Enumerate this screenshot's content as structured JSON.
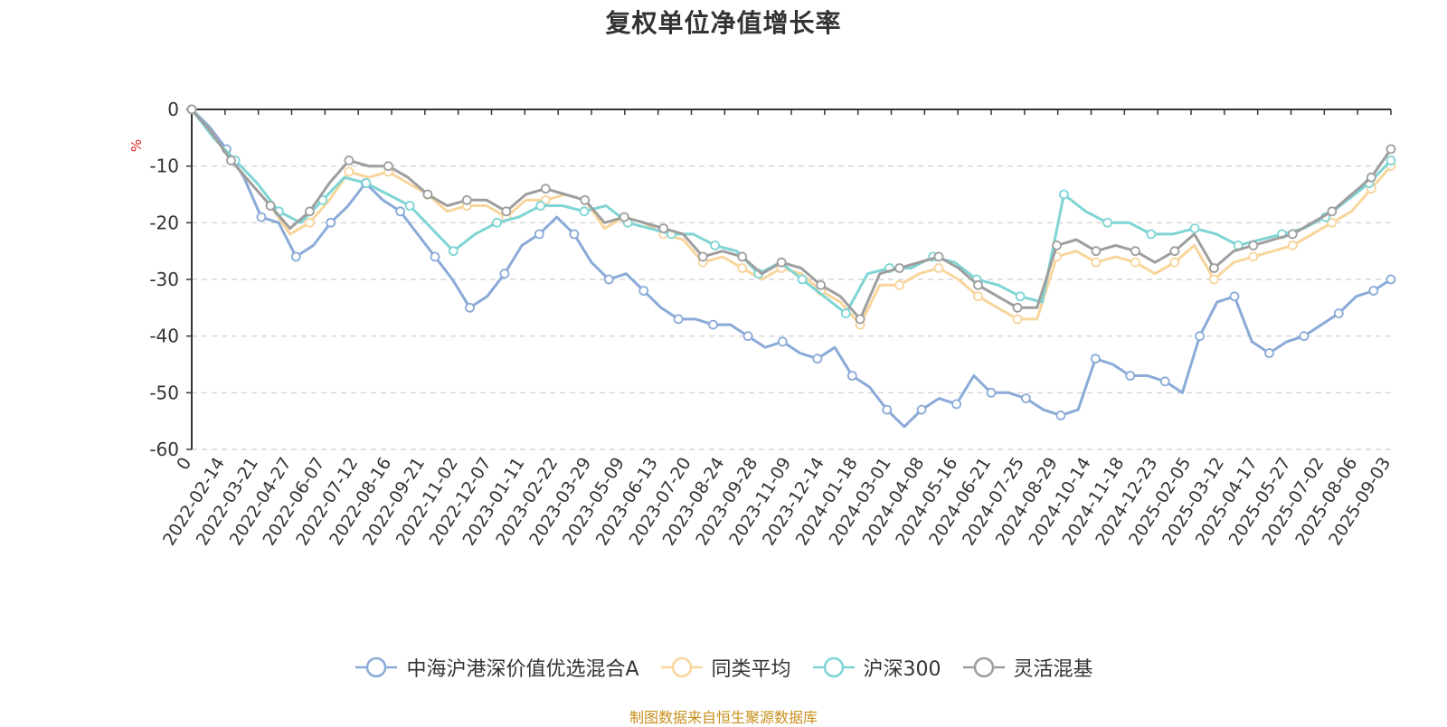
{
  "chart_data": {
    "type": "line",
    "title": "复权单位净值增长率",
    "ylabel": "%",
    "ylim": [
      -60,
      0
    ],
    "yticks": [
      "0",
      "-10",
      "-20",
      "-30",
      "-40",
      "-50",
      "-60"
    ],
    "ytick_values": [
      0,
      -10,
      -20,
      -30,
      -40,
      -50,
      -60
    ],
    "grid": true,
    "legend_position": "bottom",
    "xtick_labels": [
      "0",
      "2022-02-14",
      "2022-03-21",
      "2022-04-27",
      "2022-06-07",
      "2022-07-12",
      "2022-08-16",
      "2022-09-21",
      "2022-11-02",
      "2022-12-07",
      "2023-01-11",
      "2023-02-22",
      "2023-03-29",
      "2023-05-09",
      "2023-06-13",
      "2023-07-20",
      "2023-08-24",
      "2023-09-28",
      "2023-11-09",
      "2023-12-14",
      "2024-01-18",
      "2024-03-01",
      "2024-04-08",
      "2024-05-16",
      "2024-06-21",
      "2024-07-25",
      "2024-08-29",
      "2024-10-14",
      "2024-11-18",
      "2024-12-23",
      "2025-02-05",
      "2025-03-12",
      "2025-04-17",
      "2025-05-27",
      "2025-07-02",
      "2025-08-06",
      "2025-09-03"
    ],
    "series": [
      {
        "name": "中海沪港深价值优选混合A",
        "color": "#8aaad8",
        "values": [
          0,
          -3,
          -7,
          -12,
          -19,
          -20,
          -26,
          -24,
          -20,
          -17,
          -13,
          -16,
          -18,
          -22,
          -26,
          -30,
          -35,
          -33,
          -29,
          -24,
          -22,
          -19,
          -22,
          -27,
          -30,
          -29,
          -32,
          -35,
          -37,
          -37,
          -38,
          -38,
          -40,
          -42,
          -41,
          -43,
          -44,
          -42,
          -47,
          -49,
          -53,
          -56,
          -53,
          -51,
          -52,
          -47,
          -50,
          -50,
          -51,
          -53,
          -54,
          -53,
          -44,
          -45,
          -47,
          -47,
          -48,
          -50,
          -40,
          -34,
          -33,
          -41,
          -43,
          -41,
          -40,
          -38,
          -36,
          -33,
          -32,
          -30
        ]
      },
      {
        "name": "同类平均",
        "color": "#f8d59b",
        "values": [
          0,
          -4,
          -9,
          -13,
          -17,
          -22,
          -20,
          -16,
          -11,
          -12,
          -11,
          -13,
          -15,
          -18,
          -17,
          -17,
          -19,
          -16,
          -16,
          -15,
          -16,
          -21,
          -19,
          -20,
          -22,
          -23,
          -27,
          -26,
          -28,
          -30,
          -28,
          -29,
          -32,
          -34,
          -38,
          -31,
          -31,
          -29,
          -28,
          -30,
          -33,
          -35,
          -37,
          -37,
          -26,
          -25,
          -27,
          -26,
          -27,
          -29,
          -27,
          -24,
          -30,
          -27,
          -26,
          -25,
          -24,
          -22,
          -20,
          -18,
          -14,
          -10
        ]
      },
      {
        "name": "沪深300",
        "color": "#7fd4d4",
        "values": [
          0,
          -5,
          -9,
          -13,
          -18,
          -20,
          -16,
          -12,
          -13,
          -15,
          -17,
          -21,
          -25,
          -22,
          -20,
          -19,
          -17,
          -17,
          -18,
          -17,
          -20,
          -21,
          -22,
          -22,
          -24,
          -25,
          -29,
          -27,
          -30,
          -33,
          -36,
          -29,
          -28,
          -28,
          -26,
          -27,
          -30,
          -31,
          -33,
          -34,
          -15,
          -18,
          -20,
          -20,
          -22,
          -22,
          -21,
          -22,
          -24,
          -23,
          -22,
          -21,
          -19,
          -16,
          -13,
          -9
        ]
      },
      {
        "name": "灵活混基",
        "color": "#9e9e9e",
        "values": [
          0,
          -4,
          -9,
          -13,
          -17,
          -21,
          -18,
          -13,
          -9,
          -10,
          -10,
          -12,
          -15,
          -17,
          -16,
          -16,
          -18,
          -15,
          -14,
          -15,
          -16,
          -20,
          -19,
          -20,
          -21,
          -22,
          -26,
          -25,
          -26,
          -29,
          -27,
          -28,
          -31,
          -33,
          -37,
          -29,
          -28,
          -27,
          -26,
          -28,
          -31,
          -33,
          -35,
          -35,
          -24,
          -23,
          -25,
          -24,
          -25,
          -27,
          -25,
          -22,
          -28,
          -25,
          -24,
          -23,
          -22,
          -20,
          -18,
          -15,
          -12,
          -7
        ]
      }
    ]
  },
  "source_note": "制图数据来自恒生聚源数据库"
}
